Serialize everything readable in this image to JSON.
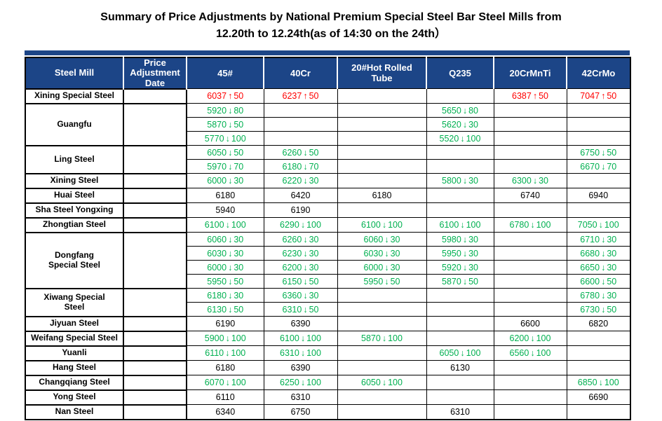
{
  "title": {
    "line1": "Summary of Price Adjustments by National Premium Special Steel Bar Steel Mills from",
    "line2": "12.20th to 12.24th(as of 14:30 on the 24th）"
  },
  "colors": {
    "header_bg": "#1C4587",
    "header_text": "#FFFFFF",
    "up_red": "#FF0000",
    "down_green": "#00B050",
    "neutral_text": "#000000",
    "grid": "#000000"
  },
  "table": {
    "columns": [
      "Steel Mill",
      "Price Adjustment Date",
      "45#",
      "40Cr",
      "20#Hot Rolled Tube",
      "Q235",
      "20CrMnTi",
      "42CrMo"
    ],
    "arrow_icons": {
      "up": "↑",
      "down": "↓"
    },
    "groups": [
      {
        "mill": "Xining Special Steel",
        "rows": [
          [
            {
              "value": "6037",
              "arrow": "up",
              "change": "50"
            },
            {
              "value": "6237",
              "arrow": "up",
              "change": "50"
            },
            null,
            null,
            {
              "value": "6387",
              "arrow": "up",
              "change": "50"
            },
            {
              "value": "7047",
              "arrow": "up",
              "change": "50"
            }
          ]
        ]
      },
      {
        "mill": "Guangfu",
        "rows": [
          [
            {
              "value": "5920",
              "arrow": "down",
              "change": "80"
            },
            null,
            null,
            {
              "value": "5650",
              "arrow": "down",
              "change": "80"
            },
            null,
            null
          ],
          [
            {
              "value": "5870",
              "arrow": "down",
              "change": "50"
            },
            null,
            null,
            {
              "value": "5620",
              "arrow": "down",
              "change": "30"
            },
            null,
            null
          ],
          [
            {
              "value": "5770",
              "arrow": "down",
              "change": "100"
            },
            null,
            null,
            {
              "value": "5520",
              "arrow": "down",
              "change": "100"
            },
            null,
            null
          ]
        ]
      },
      {
        "mill": "Ling Steel",
        "rows": [
          [
            {
              "value": "6050",
              "arrow": "down",
              "change": "50"
            },
            {
              "value": "6260",
              "arrow": "down",
              "change": "50"
            },
            null,
            null,
            null,
            {
              "value": "6750",
              "arrow": "down",
              "change": "50"
            }
          ],
          [
            {
              "value": "5970",
              "arrow": "down",
              "change": "70"
            },
            {
              "value": "6180",
              "arrow": "down",
              "change": "70"
            },
            null,
            null,
            null,
            {
              "value": "6670",
              "arrow": "down",
              "change": "70"
            }
          ]
        ]
      },
      {
        "mill": "Xining Steel",
        "rows": [
          [
            {
              "value": "6000",
              "arrow": "down",
              "change": "30"
            },
            {
              "value": "6220",
              "arrow": "down",
              "change": "30"
            },
            null,
            {
              "value": "5800",
              "arrow": "down",
              "change": "30"
            },
            {
              "value": "6300",
              "arrow": "down",
              "change": "30"
            },
            null
          ]
        ]
      },
      {
        "mill": "Huai Steel",
        "rows": [
          [
            {
              "value": "6180"
            },
            {
              "value": "6420"
            },
            {
              "value": "6180"
            },
            null,
            {
              "value": "6740"
            },
            {
              "value": "6940"
            }
          ]
        ]
      },
      {
        "mill": "Sha Steel Yongxing",
        "rows": [
          [
            {
              "value": "5940"
            },
            {
              "value": "6190"
            },
            null,
            null,
            null,
            null
          ]
        ]
      },
      {
        "mill": "Zhongtian Steel",
        "rows": [
          [
            {
              "value": "6100",
              "arrow": "down",
              "change": "100"
            },
            {
              "value": "6290",
              "arrow": "down",
              "change": "100"
            },
            {
              "value": "6100",
              "arrow": "down",
              "change": "100"
            },
            {
              "value": "6100",
              "arrow": "down",
              "change": "100"
            },
            {
              "value": "6780",
              "arrow": "down",
              "change": "100"
            },
            {
              "value": "7050",
              "arrow": "down",
              "change": "100"
            }
          ]
        ]
      },
      {
        "mill": "Dongfang\nSpecial Steel",
        "rows": [
          [
            {
              "value": "6060",
              "arrow": "down",
              "change": "30"
            },
            {
              "value": "6260",
              "arrow": "down",
              "change": "30"
            },
            {
              "value": "6060",
              "arrow": "down",
              "change": "30"
            },
            {
              "value": "5980",
              "arrow": "down",
              "change": "30"
            },
            null,
            {
              "value": "6710",
              "arrow": "down",
              "change": "30"
            }
          ],
          [
            {
              "value": "6030",
              "arrow": "down",
              "change": "30"
            },
            {
              "value": "6230",
              "arrow": "down",
              "change": "30"
            },
            {
              "value": "6030",
              "arrow": "down",
              "change": "30"
            },
            {
              "value": "5950",
              "arrow": "down",
              "change": "30"
            },
            null,
            {
              "value": "6680",
              "arrow": "down",
              "change": "30"
            }
          ],
          [
            {
              "value": "6000",
              "arrow": "down",
              "change": "30"
            },
            {
              "value": "6200",
              "arrow": "down",
              "change": "30"
            },
            {
              "value": "6000",
              "arrow": "down",
              "change": "30"
            },
            {
              "value": "5920",
              "arrow": "down",
              "change": "30"
            },
            null,
            {
              "value": "6650",
              "arrow": "down",
              "change": "30"
            }
          ],
          [
            {
              "value": "5950",
              "arrow": "down",
              "change": "50"
            },
            {
              "value": "6150",
              "arrow": "down",
              "change": "50"
            },
            {
              "value": "5950",
              "arrow": "down",
              "change": "50"
            },
            {
              "value": "5870",
              "arrow": "down",
              "change": "50"
            },
            null,
            {
              "value": "6600",
              "arrow": "down",
              "change": "50"
            }
          ]
        ]
      },
      {
        "mill": "Xiwang Special\nSteel",
        "rows": [
          [
            {
              "value": "6180",
              "arrow": "down",
              "change": "30"
            },
            {
              "value": "6360",
              "arrow": "down",
              "change": "30"
            },
            null,
            null,
            null,
            {
              "value": "6780",
              "arrow": "down",
              "change": "30"
            }
          ],
          [
            {
              "value": "6130",
              "arrow": "down",
              "change": "50"
            },
            {
              "value": "6310",
              "arrow": "down",
              "change": "50"
            },
            null,
            null,
            null,
            {
              "value": "6730",
              "arrow": "down",
              "change": "50"
            }
          ]
        ]
      },
      {
        "mill": "Jiyuan Steel",
        "rows": [
          [
            {
              "value": "6190"
            },
            {
              "value": "6390"
            },
            null,
            null,
            {
              "value": "6600"
            },
            {
              "value": "6820"
            }
          ]
        ]
      },
      {
        "mill": "Weifang Special Steel",
        "rows": [
          [
            {
              "value": "5900",
              "arrow": "down",
              "change": "100"
            },
            {
              "value": "6100",
              "arrow": "down",
              "change": "100"
            },
            {
              "value": "5870",
              "arrow": "down",
              "change": "100"
            },
            null,
            {
              "value": "6200",
              "arrow": "down",
              "change": "100"
            },
            null
          ]
        ]
      },
      {
        "mill": "Yuanli",
        "rows": [
          [
            {
              "value": "6110",
              "arrow": "down",
              "change": "100"
            },
            {
              "value": "6310",
              "arrow": "down",
              "change": "100"
            },
            null,
            {
              "value": "6050",
              "arrow": "down",
              "change": "100"
            },
            {
              "value": "6560",
              "arrow": "down",
              "change": "100"
            },
            null
          ]
        ]
      },
      {
        "mill": "Hang Steel",
        "rows": [
          [
            {
              "value": "6180"
            },
            {
              "value": "6390"
            },
            null,
            {
              "value": "6130"
            },
            null,
            null
          ]
        ]
      },
      {
        "mill": "Changqiang Steel",
        "rows": [
          [
            {
              "value": "6070",
              "arrow": "down",
              "change": "100"
            },
            {
              "value": "6250",
              "arrow": "down",
              "change": "100"
            },
            {
              "value": "6050",
              "arrow": "down",
              "change": "100"
            },
            null,
            null,
            {
              "value": "6850",
              "arrow": "down",
              "change": "100"
            }
          ]
        ]
      },
      {
        "mill": "Yong Steel",
        "rows": [
          [
            {
              "value": "6110"
            },
            {
              "value": "6310"
            },
            null,
            null,
            null,
            {
              "value": "6690"
            }
          ]
        ]
      },
      {
        "mill": "Nan Steel",
        "rows": [
          [
            {
              "value": "6340"
            },
            {
              "value": "6750"
            },
            null,
            {
              "value": "6310"
            },
            null,
            null
          ]
        ]
      }
    ]
  }
}
